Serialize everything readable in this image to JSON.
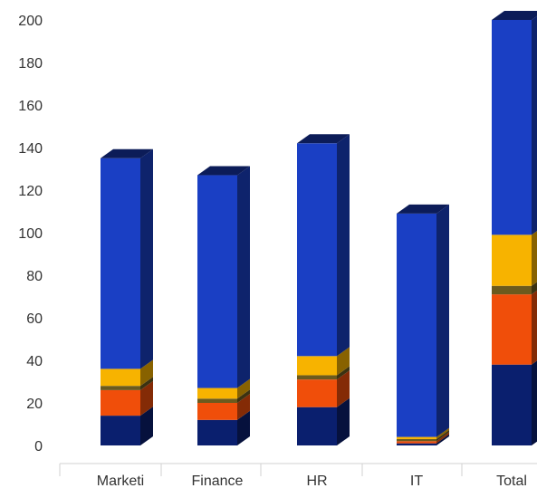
{
  "chart_data": {
    "type": "bar",
    "stacked": true,
    "style": "3d-column",
    "categories": [
      "Marketi",
      "Finance",
      "HR",
      "IT",
      "Total"
    ],
    "series": [
      {
        "color": "#0a1f6e",
        "values": [
          14,
          12,
          18,
          1,
          38
        ]
      },
      {
        "color": "#f04e0a",
        "values": [
          12,
          8,
          13,
          1,
          33
        ]
      },
      {
        "color": "#6b5a1e",
        "values": [
          2,
          2,
          2,
          1,
          4
        ]
      },
      {
        "color": "#f7b300",
        "values": [
          8,
          5,
          9,
          1,
          24
        ]
      },
      {
        "color": "#1a3fc4",
        "values": [
          99,
          100,
          100,
          105,
          101
        ]
      }
    ],
    "yticks": [
      0,
      20,
      40,
      60,
      80,
      100,
      120,
      140,
      160,
      180,
      200
    ],
    "ylim": [
      0,
      200
    ],
    "title": "",
    "xlabel": "",
    "ylabel": "",
    "grid": false,
    "legend": "none"
  }
}
